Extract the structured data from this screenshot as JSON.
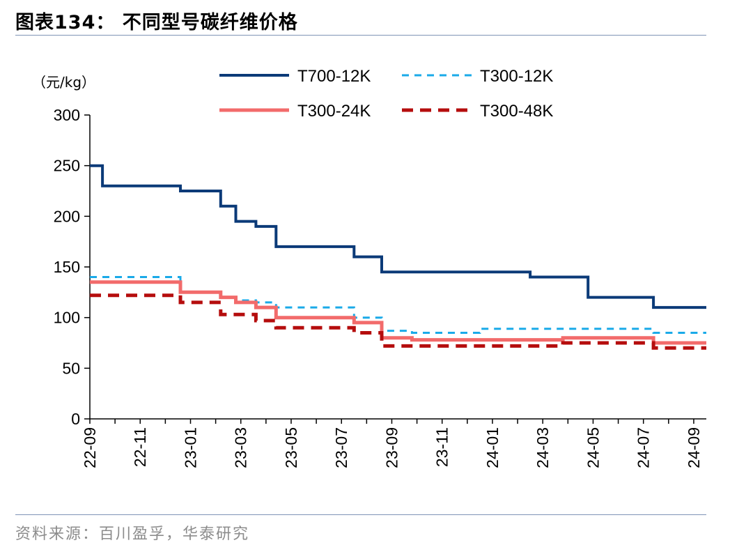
{
  "header": {
    "title": "图表134：  不同型号碳纤维价格"
  },
  "footer": {
    "source": "资料来源：百川盈孚，华泰研究"
  },
  "chart_data": {
    "type": "line",
    "step": true,
    "unit_label": "（元/kg）",
    "ylim": [
      0,
      300
    ],
    "yticks": [
      "0",
      "50",
      "100",
      "150",
      "200",
      "250",
      "300"
    ],
    "xlim": [
      0,
      24.5
    ],
    "xtick_labels": [
      "22-09",
      "22-11",
      "23-01",
      "23-03",
      "23-05",
      "23-07",
      "23-09",
      "23-11",
      "24-01",
      "24-03",
      "24-05",
      "24-07",
      "24-09"
    ],
    "x_unit": "months since 2022-09",
    "series": [
      {
        "name": "T700-12K",
        "color": "#0b3a78",
        "style": "solid",
        "width": 4,
        "points": [
          [
            0,
            250
          ],
          [
            0.5,
            230
          ],
          [
            3.6,
            225
          ],
          [
            5.2,
            210
          ],
          [
            5.8,
            195
          ],
          [
            6.6,
            190
          ],
          [
            7.4,
            170
          ],
          [
            10.5,
            160
          ],
          [
            11.6,
            145
          ],
          [
            17.5,
            140
          ],
          [
            19.8,
            120
          ],
          [
            22.4,
            110
          ],
          [
            24.5,
            110
          ]
        ]
      },
      {
        "name": "T300-12K",
        "color": "#1aaae8",
        "style": "dashed",
        "width": 3,
        "points": [
          [
            0,
            140
          ],
          [
            3.6,
            125
          ],
          [
            5.2,
            120
          ],
          [
            5.8,
            117
          ],
          [
            6.6,
            115
          ],
          [
            7.4,
            110
          ],
          [
            10.5,
            100
          ],
          [
            11.6,
            87
          ],
          [
            12.8,
            85
          ],
          [
            15.5,
            89
          ],
          [
            22.4,
            85
          ],
          [
            24.5,
            85
          ]
        ]
      },
      {
        "name": "T300-24K",
        "color": "#f26b6b",
        "style": "solid",
        "width": 5,
        "points": [
          [
            0,
            135
          ],
          [
            3.6,
            125
          ],
          [
            5.2,
            120
          ],
          [
            5.8,
            115
          ],
          [
            6.6,
            110
          ],
          [
            7.4,
            100
          ],
          [
            10.5,
            95
          ],
          [
            11.6,
            80
          ],
          [
            12.8,
            78
          ],
          [
            18.8,
            80
          ],
          [
            22.4,
            75
          ],
          [
            24.5,
            75
          ]
        ]
      },
      {
        "name": "T300-48K",
        "color": "#b50d0d",
        "style": "dashed",
        "width": 5,
        "points": [
          [
            0,
            122
          ],
          [
            3.6,
            115
          ],
          [
            5.2,
            103
          ],
          [
            6.6,
            97
          ],
          [
            7.4,
            90
          ],
          [
            10.5,
            85
          ],
          [
            11.6,
            72
          ],
          [
            18.8,
            75
          ],
          [
            22.4,
            70
          ],
          [
            24.5,
            70
          ]
        ]
      }
    ]
  }
}
